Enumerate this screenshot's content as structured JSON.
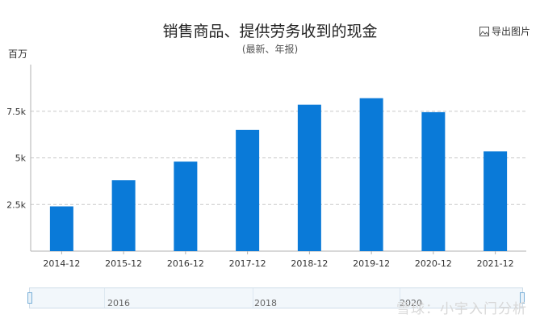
{
  "header": {
    "title": "销售商品、提供劳务收到的现金",
    "subtitle": "(最新、年报)",
    "export_label": "导出图片"
  },
  "unit_label": "百万",
  "chart_data": {
    "type": "bar",
    "categories": [
      "2014-12",
      "2015-12",
      "2016-12",
      "2017-12",
      "2018-12",
      "2019-12",
      "2020-12",
      "2021-12"
    ],
    "values": [
      2400,
      3800,
      4800,
      6500,
      7850,
      8200,
      7450,
      5350
    ],
    "ylim": [
      0,
      10000
    ],
    "yticks": [
      2500,
      5000,
      7500
    ],
    "ytick_labels": [
      "2.5k",
      "5k",
      "7.5k"
    ],
    "grid": true,
    "bar_color": "#0a7ad8"
  },
  "navigator": {
    "labels": [
      "2016",
      "2018",
      "2020"
    ]
  },
  "watermark": "雪球：小宇入门分析"
}
